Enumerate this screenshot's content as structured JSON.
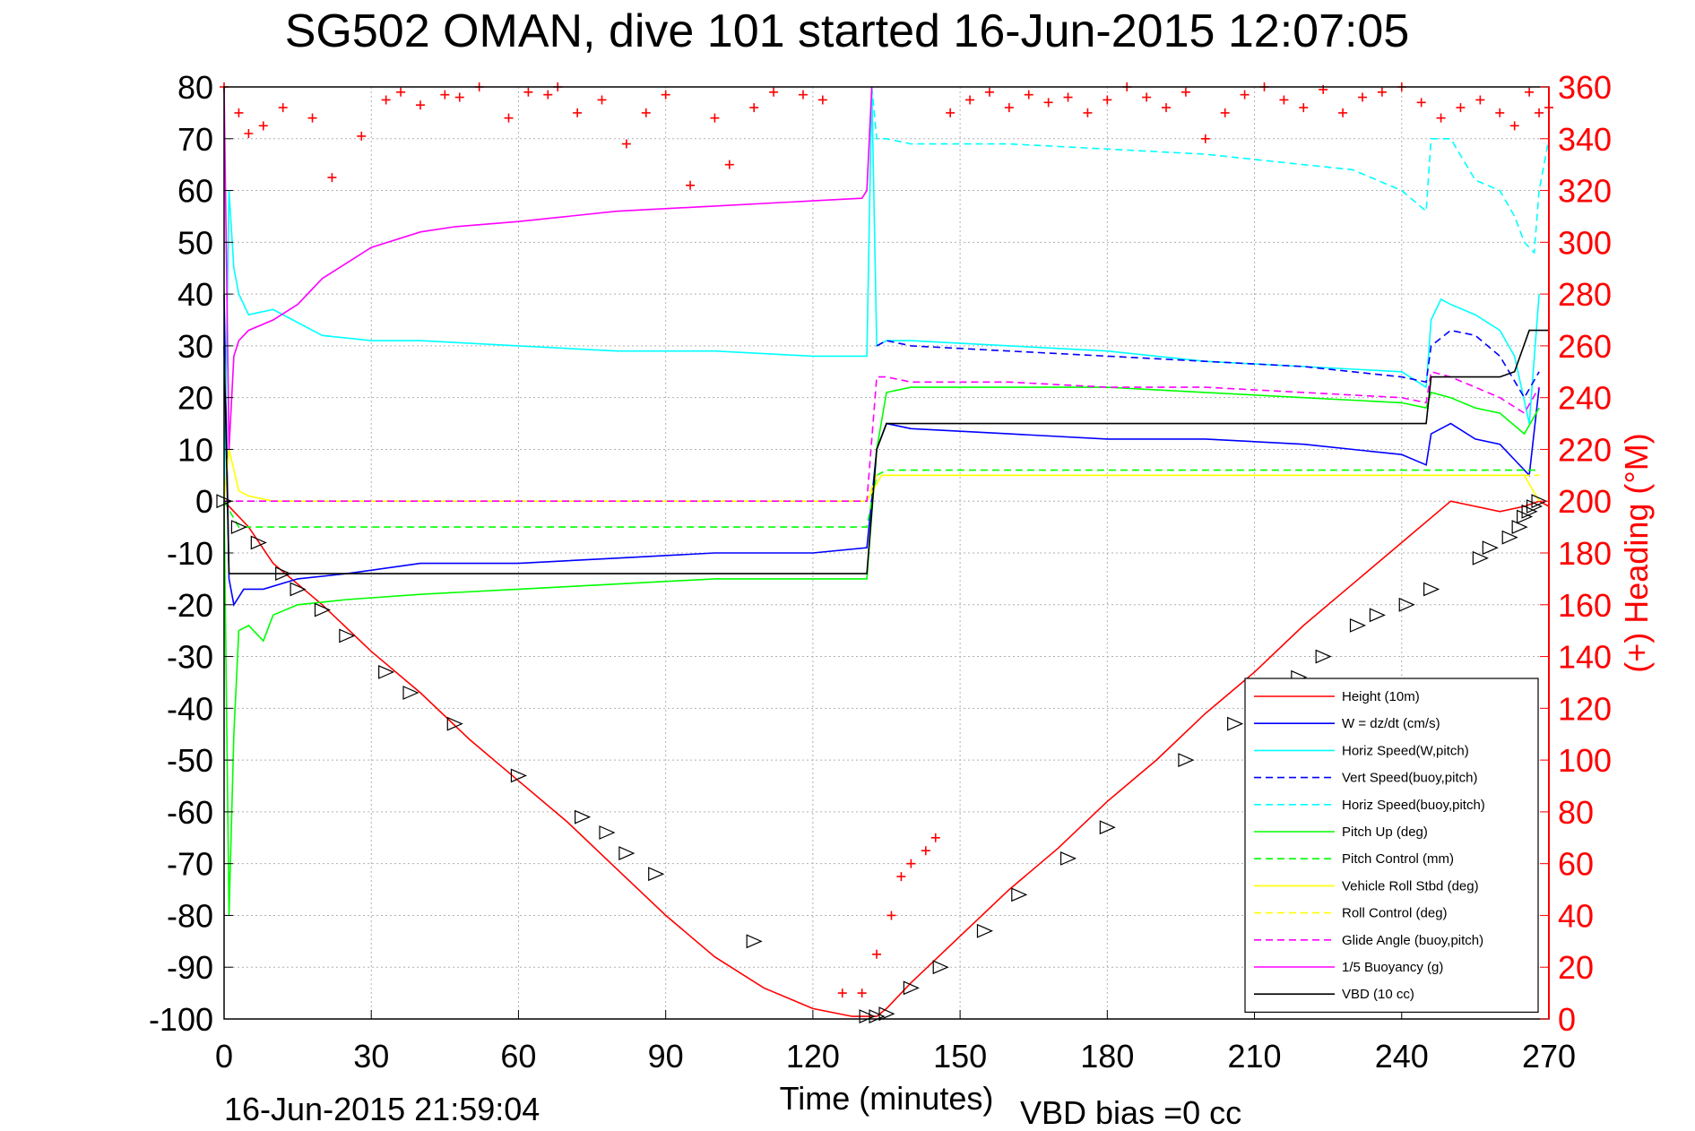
{
  "chart_data": {
    "type": "line",
    "title": "SG502 OMAN, dive 101 started 16-Jun-2015 12:07:05",
    "xlabel": "Time (minutes)",
    "ylabel_right": "(+) Heading (°M)",
    "footer_left": "16-Jun-2015 21:59:04",
    "footer_right": "VBD bias =0 cc",
    "xlim": [
      0,
      270
    ],
    "ylim_left": [
      -100,
      80
    ],
    "ylim_right": [
      0,
      360
    ],
    "xticks": [
      "0",
      "30",
      "60",
      "90",
      "120",
      "150",
      "180",
      "210",
      "240",
      "270"
    ],
    "yticks_left": [
      "80",
      "70",
      "60",
      "50",
      "40",
      "30",
      "20",
      "10",
      "0",
      "-10",
      "-20",
      "-30",
      "-40",
      "-50",
      "-60",
      "-70",
      "-80",
      "-90",
      "-100"
    ],
    "yticks_right": [
      "360",
      "340",
      "320",
      "300",
      "280",
      "260",
      "240",
      "220",
      "200",
      "180",
      "160",
      "140",
      "120",
      "100",
      "80",
      "60",
      "40",
      "20",
      "0"
    ],
    "grid": true,
    "legend_position": "bottom-right",
    "colors": {
      "red": "#ff0000",
      "blue": "#0000ff",
      "cyan": "#00ffff",
      "green": "#00ff00",
      "yellow": "#ffff00",
      "magenta": "#ff00ff",
      "black": "#000000"
    },
    "series": [
      {
        "name": "Height (10m)",
        "color": "#ff0000",
        "style": "solid",
        "x": [
          0,
          5,
          10,
          20,
          30,
          40,
          50,
          60,
          70,
          80,
          90,
          100,
          110,
          120,
          128,
          133,
          135,
          140,
          150,
          160,
          170,
          180,
          190,
          200,
          210,
          220,
          230,
          240,
          250,
          260,
          265,
          268,
          270
        ],
        "y": [
          0,
          -5,
          -12,
          -20,
          -29,
          -37,
          -46,
          -54,
          -62,
          -71,
          -80,
          -88,
          -94,
          -98,
          -99.5,
          -99.5,
          -98,
          -93,
          -84,
          -75,
          -67,
          -58,
          -50,
          -41,
          -33,
          -24,
          -16,
          -8,
          0,
          -2,
          -1,
          0,
          -1
        ]
      },
      {
        "name": "W = dz/dt (cm/s)",
        "color": "#0000ff",
        "style": "solid",
        "x": [
          0,
          1,
          2,
          4,
          8,
          15,
          25,
          40,
          60,
          80,
          100,
          120,
          131,
          133,
          135,
          140,
          160,
          180,
          200,
          220,
          240,
          245,
          246,
          250,
          255,
          260,
          263,
          266,
          268
        ],
        "y": [
          40,
          -15,
          -20,
          -17,
          -17,
          -15,
          -14,
          -12,
          -12,
          -11,
          -10,
          -10,
          -9,
          10,
          15,
          14,
          13,
          12,
          12,
          11,
          9,
          7,
          13,
          15,
          12,
          11,
          8,
          5,
          22
        ]
      },
      {
        "name": "Horiz Speed(W,pitch)",
        "color": "#00ffff",
        "style": "solid",
        "x": [
          0,
          1,
          2,
          3,
          5,
          10,
          20,
          30,
          40,
          60,
          80,
          100,
          120,
          131,
          132,
          133,
          135,
          140,
          160,
          180,
          200,
          220,
          240,
          245,
          246,
          248,
          250,
          255,
          260,
          263,
          266,
          268
        ],
        "y": [
          0,
          60,
          45,
          40,
          36,
          37,
          32,
          31,
          31,
          30,
          29,
          29,
          28,
          28,
          80,
          30,
          31,
          31,
          30,
          29,
          27,
          26,
          25,
          22,
          35,
          39,
          38,
          36,
          33,
          28,
          15,
          40
        ]
      },
      {
        "name": "Vert Speed(buoy,pitch)",
        "color": "#0000ff",
        "style": "dashed",
        "x": [
          133,
          135,
          140,
          160,
          180,
          200,
          220,
          240,
          245,
          246,
          250,
          255,
          260,
          265,
          268
        ],
        "y": [
          30,
          31,
          30,
          29,
          28,
          27,
          26,
          24,
          23,
          30,
          33,
          32,
          28,
          20,
          25
        ]
      },
      {
        "name": "Horiz Speed(buoy,pitch)",
        "color": "#00ffff",
        "style": "dashed",
        "x": [
          132,
          133,
          135,
          140,
          160,
          180,
          200,
          220,
          230,
          240,
          245,
          246,
          250,
          255,
          260,
          263,
          265,
          267,
          268,
          270
        ],
        "y": [
          80,
          70,
          70,
          69,
          69,
          68,
          67,
          65,
          64,
          60,
          56,
          70,
          70,
          62,
          60,
          55,
          50,
          48,
          60,
          70
        ]
      },
      {
        "name": "Pitch Up (deg)",
        "color": "#00ff00",
        "style": "solid",
        "x": [
          0,
          1,
          2,
          3,
          5,
          8,
          10,
          15,
          25,
          40,
          60,
          80,
          100,
          120,
          131,
          133,
          135,
          140,
          160,
          180,
          200,
          220,
          240,
          245,
          246,
          250,
          255,
          260,
          265,
          268
        ],
        "y": [
          0,
          -80,
          -45,
          -25,
          -24,
          -27,
          -22,
          -20,
          -19,
          -18,
          -17,
          -16,
          -15,
          -15,
          -15,
          10,
          21,
          22,
          22,
          22,
          21,
          20,
          19,
          18,
          21,
          20,
          18,
          17,
          13,
          18
        ]
      },
      {
        "name": "Pitch Control (mm)",
        "color": "#00ff00",
        "style": "dashed",
        "x": [
          0,
          3,
          131,
          133,
          135,
          250,
          268
        ],
        "y": [
          0,
          -5,
          -5,
          5,
          6,
          6,
          6
        ]
      },
      {
        "name": "Vehicle Roll Stbd (deg)",
        "color": "#ffff00",
        "style": "solid",
        "x": [
          0,
          1,
          3,
          5,
          10,
          15,
          20,
          30,
          60,
          90,
          120,
          131,
          134,
          150,
          200,
          250,
          265,
          268
        ],
        "y": [
          0,
          10,
          2,
          1,
          0,
          0,
          0,
          0,
          0,
          0,
          0,
          0,
          5,
          5,
          5,
          5,
          5,
          0
        ]
      },
      {
        "name": "Roll Control (deg)",
        "color": "#ffff00",
        "style": "dashed",
        "x": [
          0,
          131,
          133,
          268
        ],
        "y": [
          0,
          0,
          5,
          5
        ]
      },
      {
        "name": "Glide Angle (buoy,pitch)",
        "color": "#ff00ff",
        "style": "dashed",
        "x": [
          0,
          131,
          133,
          135,
          140,
          160,
          180,
          200,
          220,
          240,
          245,
          246,
          250,
          255,
          260,
          265,
          268
        ],
        "y": [
          0,
          0,
          24,
          24,
          23,
          23,
          22,
          22,
          21,
          20,
          19,
          25,
          24,
          22,
          20,
          17,
          22
        ]
      },
      {
        "name": "1/5 Buoyancy (g)",
        "color": "#ff00ff",
        "style": "solid",
        "x": [
          0,
          1,
          2,
          3,
          5,
          10,
          15,
          20,
          25,
          30,
          40,
          47,
          60,
          80,
          100,
          120,
          130,
          131,
          132
        ],
        "y": [
          80,
          10,
          28,
          31,
          33,
          35,
          38,
          43,
          46,
          49,
          52,
          53,
          54,
          56,
          57,
          58,
          58.5,
          60,
          80
        ]
      },
      {
        "name": "VBD (10 cc)",
        "color": "#000000",
        "style": "solid",
        "x": [
          0,
          1,
          131,
          133,
          135,
          245,
          246,
          260,
          263,
          266,
          270
        ],
        "y": [
          30,
          -14,
          -14,
          10,
          15,
          15,
          24,
          24,
          25,
          33,
          33
        ]
      }
    ],
    "heading_points_note": "",
    "heading_points": {
      "color": "#ff0000",
      "x": [
        0,
        3,
        5,
        8,
        12,
        18,
        22,
        28,
        33,
        36,
        40,
        45,
        48,
        52,
        58,
        62,
        66,
        68,
        72,
        77,
        82,
        86,
        90,
        95,
        100,
        103,
        108,
        112,
        118,
        122,
        126,
        130,
        133,
        136,
        138,
        140,
        143,
        145,
        148,
        152,
        156,
        160,
        164,
        168,
        172,
        176,
        180,
        184,
        188,
        192,
        196,
        200,
        204,
        208,
        212,
        216,
        220,
        224,
        228,
        232,
        236,
        240,
        244,
        248,
        252,
        256,
        260,
        263,
        266,
        268,
        270
      ],
      "y": [
        360,
        350,
        342,
        345,
        352,
        348,
        325,
        341,
        355,
        358,
        353,
        357,
        356,
        360,
        348,
        358,
        357,
        360,
        350,
        355,
        338,
        350,
        357,
        322,
        348,
        330,
        352,
        358,
        357,
        355,
        10,
        10,
        25,
        40,
        55,
        60,
        65,
        70,
        350,
        355,
        358,
        352,
        357,
        354,
        356,
        350,
        355,
        360,
        356,
        352,
        358,
        340,
        350,
        357,
        360,
        355,
        352,
        359,
        350,
        356,
        358,
        360,
        354,
        348,
        352,
        355,
        350,
        345,
        358,
        350,
        352
      ]
    },
    "markers": {
      "color": "#000000",
      "x": [
        0,
        3,
        7,
        12,
        15,
        20,
        25,
        33,
        38,
        47,
        60,
        73,
        78,
        82,
        88,
        108,
        131,
        133,
        135,
        140,
        146,
        155,
        162,
        172,
        180,
        196,
        206,
        219,
        224,
        231,
        235,
        241,
        246,
        256,
        258,
        262,
        264,
        265,
        266,
        267,
        268
      ],
      "y": [
        0,
        -5,
        -8,
        -14,
        -17,
        -21,
        -26,
        -33,
        -37,
        -43,
        -53,
        -61,
        -64,
        -68,
        -72,
        -85,
        -99.5,
        -99.5,
        -99,
        -94,
        -90,
        -83,
        -76,
        -69,
        -63,
        -50,
        -43,
        -34,
        -30,
        -24,
        -22,
        -20,
        -17,
        -11,
        -9,
        -7,
        -5,
        -3,
        -2,
        -1,
        0
      ]
    },
    "legend_entries": [
      {
        "label": "Height (10m)",
        "color": "#ff0000",
        "style": "solid"
      },
      {
        "label": "W = dz/dt (cm/s)",
        "color": "#0000ff",
        "style": "solid"
      },
      {
        "label": "Horiz Speed(W,pitch)",
        "color": "#00ffff",
        "style": "solid"
      },
      {
        "label": "Vert Speed(buoy,pitch)",
        "color": "#0000ff",
        "style": "dashed"
      },
      {
        "label": "Horiz Speed(buoy,pitch)",
        "color": "#00ffff",
        "style": "dashed"
      },
      {
        "label": "Pitch Up (deg)",
        "color": "#00ff00",
        "style": "solid"
      },
      {
        "label": "Pitch Control (mm)",
        "color": "#00ff00",
        "style": "dashed"
      },
      {
        "label": "Vehicle Roll Stbd (deg)",
        "color": "#ffff00",
        "style": "solid"
      },
      {
        "label": "Roll Control (deg)",
        "color": "#ffff00",
        "style": "dashed"
      },
      {
        "label": "Glide Angle (buoy,pitch)",
        "color": "#ff00ff",
        "style": "dashed"
      },
      {
        "label": "1/5 Buoyancy (g)",
        "color": "#ff00ff",
        "style": "solid"
      },
      {
        "label": "VBD (10 cc)",
        "color": "#000000",
        "style": "solid"
      }
    ]
  }
}
